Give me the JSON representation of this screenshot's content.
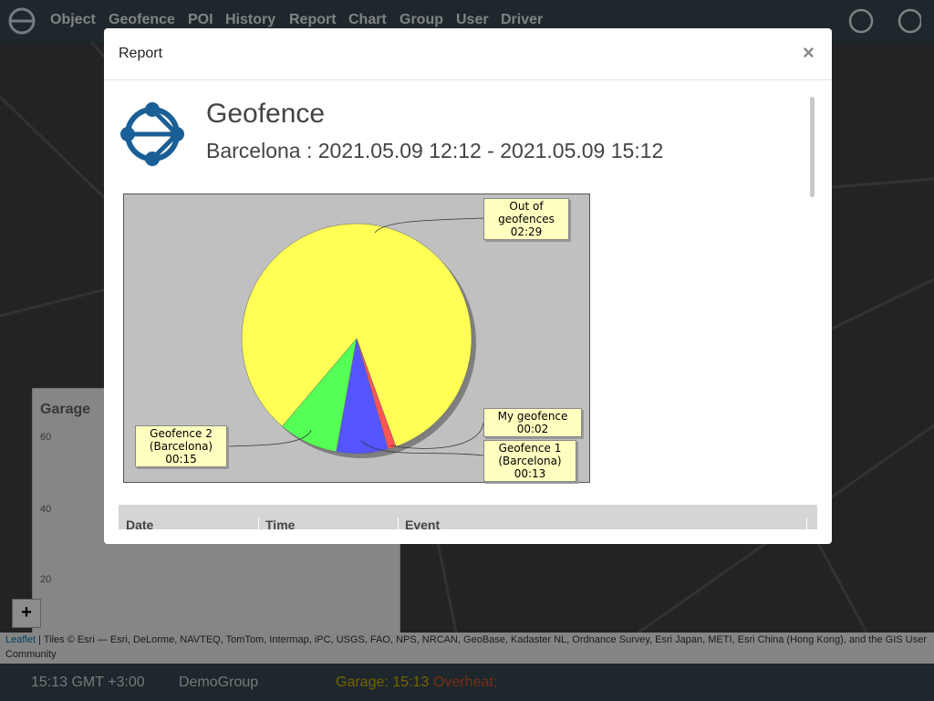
{
  "nav": {
    "items": [
      "Object",
      "Geofence",
      "POI",
      "History",
      "Report",
      "Chart",
      "Group",
      "User",
      "Driver"
    ]
  },
  "garage_panel": {
    "title": "Garage",
    "yticks": [
      60,
      40,
      20
    ]
  },
  "map": {
    "zoom_in": "+",
    "attribution_link": "Leaflet",
    "attribution": "| Tiles © Esri — Esri, DeLorme, NAVTEQ, TomTom, Intermap, iPC, USGS, FAO, NPS, NRCAN, GeoBase, Kadaster NL, Ordnance Survey, Esri Japan, METI, Esri China (Hong Kong), and the GIS User Community"
  },
  "status": {
    "time": "15:13 GMT +3:00",
    "group": "DemoGroup",
    "alert": "Garage: 15:13",
    "alert_event": "Overheat;"
  },
  "modal": {
    "title": "Report",
    "close": "×",
    "report_title": "Geofence",
    "subtitle": "Barcelona : 2021.05.09 12:12 - 2021.05.09 15:12",
    "table_headers": [
      "Date",
      "Time",
      "Event"
    ]
  },
  "chart_data": {
    "type": "pie",
    "categories": [
      "Out of geofences",
      "Geofence 2 (Barcelona)",
      "Geofence 1 (Barcelona)",
      "My geofence"
    ],
    "values": [
      149,
      15,
      13,
      2
    ],
    "value_labels": [
      "02:29",
      "00:15",
      "00:13",
      "00:02"
    ],
    "colors": [
      "#ffff55",
      "#55ff55",
      "#5555ff",
      "#ff5555"
    ]
  }
}
